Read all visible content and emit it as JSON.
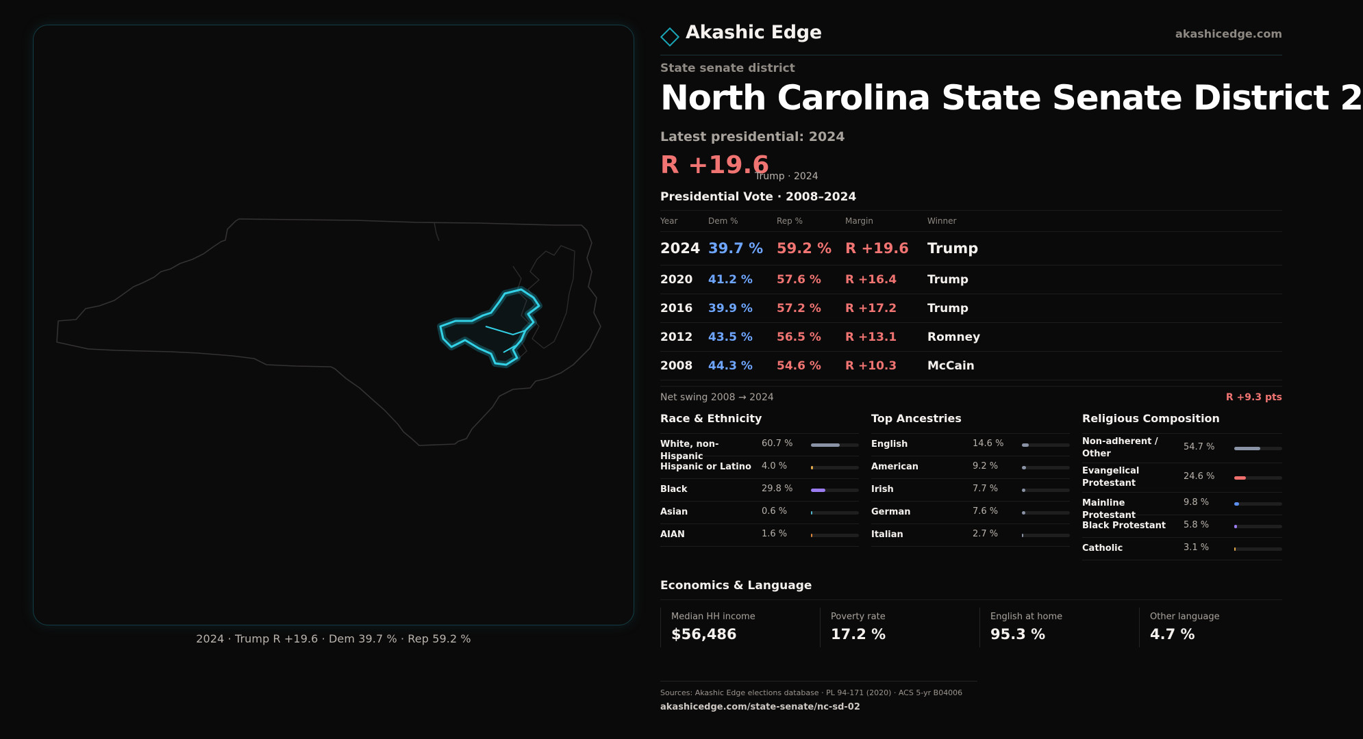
{
  "brand": {
    "name": "Akashic Edge",
    "url": "akashicedge.com"
  },
  "district_kind": "State senate district",
  "title": "North Carolina State Senate District 2",
  "latest_label": "Latest presidential: 2024",
  "latest_margin": "R +19.6",
  "latest_note": "Trump · 2024",
  "map_caption": "2024 · Trump R +19.6 · Dem 39.7 % · Rep 59.2 %",
  "presidential": {
    "title": "Presidential Vote · 2008–2024",
    "headers": [
      "Year",
      "Dem %",
      "Rep %",
      "Margin",
      "Winner"
    ],
    "rows": [
      {
        "year": "2024",
        "dem": "39.7 %",
        "rep": "59.2 %",
        "margin": "R +19.6",
        "winner": "Trump"
      },
      {
        "year": "2020",
        "dem": "41.2 %",
        "rep": "57.6 %",
        "margin": "R +16.4",
        "winner": "Trump"
      },
      {
        "year": "2016",
        "dem": "39.9 %",
        "rep": "57.2 %",
        "margin": "R +17.2",
        "winner": "Trump"
      },
      {
        "year": "2012",
        "dem": "43.5 %",
        "rep": "56.5 %",
        "margin": "R +13.1",
        "winner": "Romney"
      },
      {
        "year": "2008",
        "dem": "44.3 %",
        "rep": "54.6 %",
        "margin": "R +10.3",
        "winner": "McCain"
      }
    ]
  },
  "swing": {
    "label": "Net swing 2008 → 2024",
    "value": "R +9.3 pts"
  },
  "race": {
    "title": "Race & Ethnicity",
    "rows": [
      {
        "label": "White, non-Hispanic",
        "pct": "60.7 %",
        "value": 60.7,
        "color": "#8a93a6"
      },
      {
        "label": "Hispanic or Latino",
        "pct": "4.0 %",
        "value": 4.0,
        "color": "#e0a84a"
      },
      {
        "label": "Black",
        "pct": "29.8 %",
        "value": 29.8,
        "color": "#9a7cf0"
      },
      {
        "label": "Asian",
        "pct": "0.6 %",
        "value": 0.6,
        "color": "#4fb7c9"
      },
      {
        "label": "AIAN",
        "pct": "1.6 %",
        "value": 1.6,
        "color": "#e0873e"
      }
    ]
  },
  "ancestry": {
    "title": "Top Ancestries",
    "rows": [
      {
        "label": "English",
        "pct": "14.6 %",
        "value": 14.6,
        "color": "#8a93a6"
      },
      {
        "label": "American",
        "pct": "9.2 %",
        "value": 9.2,
        "color": "#8a93a6"
      },
      {
        "label": "Irish",
        "pct": "7.7 %",
        "value": 7.7,
        "color": "#8a93a6"
      },
      {
        "label": "German",
        "pct": "7.6 %",
        "value": 7.6,
        "color": "#8a93a6"
      },
      {
        "label": "Italian",
        "pct": "2.7 %",
        "value": 2.7,
        "color": "#8a93a6"
      }
    ]
  },
  "religion": {
    "title": "Religious Composition",
    "rows": [
      {
        "label": "Non-adherent / Other",
        "pct": "54.7 %",
        "value": 54.7,
        "color": "#8a93a6"
      },
      {
        "label": "Evangelical Protestant",
        "pct": "24.6 %",
        "value": 24.6,
        "color": "#ef6f6c"
      },
      {
        "label": "Mainline Protestant",
        "pct": "9.8 %",
        "value": 9.8,
        "color": "#5b8ff0"
      },
      {
        "label": "Black Protestant",
        "pct": "5.8 %",
        "value": 5.8,
        "color": "#9a7cf0"
      },
      {
        "label": "Catholic",
        "pct": "3.1 %",
        "value": 3.1,
        "color": "#e0a84a"
      }
    ]
  },
  "economics": {
    "title": "Economics & Language",
    "cards": [
      {
        "label": "Median HH income",
        "value": "$56,486"
      },
      {
        "label": "Poverty rate",
        "value": "17.2 %"
      },
      {
        "label": "English at home",
        "value": "95.3 %"
      },
      {
        "label": "Other language",
        "value": "4.7 %"
      }
    ]
  },
  "sources": "Sources: Akashic Edge elections database · PL 94-171 (2020) · ACS 5-yr B04006",
  "source_url": "akashicedge.com/state-senate/nc-sd-02"
}
